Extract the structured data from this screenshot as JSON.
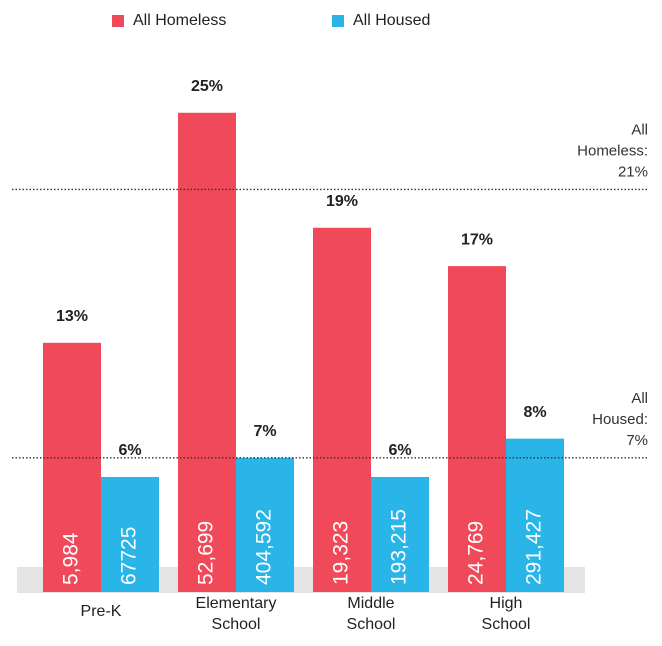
{
  "chart_data": {
    "type": "bar",
    "categories": [
      "Pre-K",
      "Elementary School",
      "Middle School",
      "High School"
    ],
    "series": [
      {
        "name": "All Homeless",
        "color": "#f04a5a",
        "values": [
          13,
          25,
          19,
          17
        ],
        "value_labels": [
          "13%",
          "25%",
          "19%",
          "17%"
        ],
        "counts": [
          5984,
          52699,
          19323,
          24769
        ],
        "count_labels": [
          "5,984",
          "52,699",
          "19,323",
          "24,769"
        ]
      },
      {
        "name": "All Housed",
        "color": "#29b5e8",
        "values": [
          6,
          7,
          6,
          8
        ],
        "value_labels": [
          "6%",
          "7%",
          "6%",
          "8%"
        ],
        "counts": [
          67725,
          404592,
          193215,
          291427
        ],
        "count_labels": [
          "67725",
          "404,592",
          "193,215",
          "291,427"
        ]
      }
    ],
    "reference_lines": [
      {
        "label": "All Homeless:",
        "value": 21,
        "value_label": "21%"
      },
      {
        "label": "All Housed:",
        "value": 7,
        "value_label": "7%"
      }
    ],
    "ylim": [
      0,
      27
    ],
    "legend": "top"
  }
}
